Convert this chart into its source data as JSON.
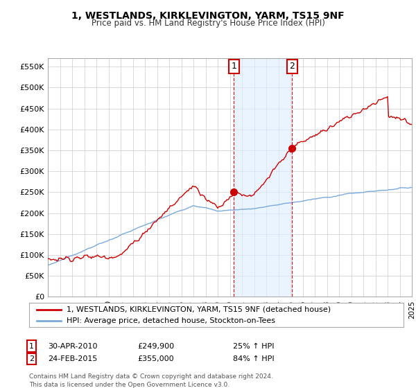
{
  "title": "1, WESTLANDS, KIRKLEVINGTON, YARM, TS15 9NF",
  "subtitle": "Price paid vs. HM Land Registry's House Price Index (HPI)",
  "ylim": [
    0,
    570000
  ],
  "yticks": [
    0,
    50000,
    100000,
    150000,
    200000,
    250000,
    300000,
    350000,
    400000,
    450000,
    500000,
    550000
  ],
  "ytick_labels": [
    "£0",
    "£50K",
    "£100K",
    "£150K",
    "£200K",
    "£250K",
    "£300K",
    "£350K",
    "£400K",
    "£450K",
    "£500K",
    "£550K"
  ],
  "hpi_color": "#7aaadd",
  "price_color": "#cc0000",
  "sale1_year": 2010.33,
  "sale1_price": 249900,
  "sale1_label": "1",
  "sale1_date_str": "30-APR-2010",
  "sale1_price_str": "£249,900",
  "sale1_hpi_str": "25% ↑ HPI",
  "sale2_year": 2015.12,
  "sale2_price": 355000,
  "sale2_label": "2",
  "sale2_date_str": "24-FEB-2015",
  "sale2_price_str": "£355,000",
  "sale2_hpi_str": "84% ↑ HPI",
  "legend_line1": "1, WESTLANDS, KIRKLEVINGTON, YARM, TS15 9NF (detached house)",
  "legend_line2": "HPI: Average price, detached house, Stockton-on-Tees",
  "footer": "Contains HM Land Registry data © Crown copyright and database right 2024.\nThis data is licensed under the Open Government Licence v3.0.",
  "bg_color": "#ffffff",
  "grid_color": "#cccccc",
  "span_color": "#ddeeff"
}
